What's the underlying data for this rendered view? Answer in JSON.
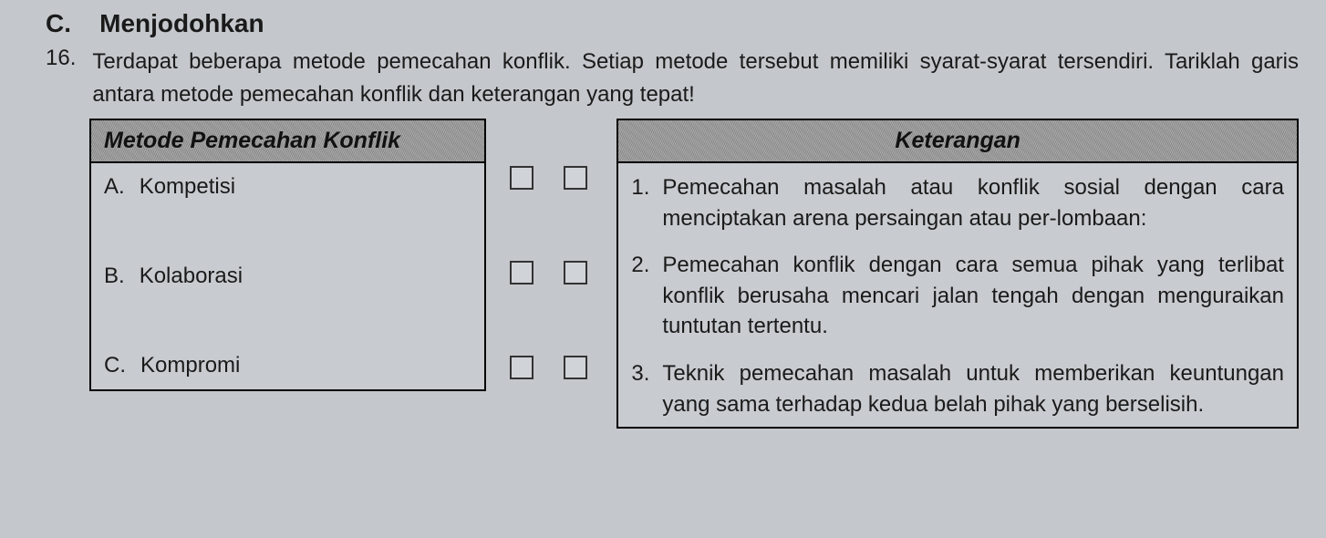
{
  "section": {
    "label": "C.",
    "title": "Menjodohkan"
  },
  "question": {
    "number": "16.",
    "text": "Terdapat beberapa metode pemecahan konflik. Setiap metode tersebut memiliki syarat-syarat tersendiri. Tariklah garis antara metode pemecahan konflik dan keterangan yang tepat!"
  },
  "left": {
    "header": "Metode Pemecahan Konflik",
    "items": [
      {
        "letter": "A.",
        "text": "Kompetisi"
      },
      {
        "letter": "B.",
        "text": "Kolaborasi"
      },
      {
        "letter": "C.",
        "text": "Kompromi"
      }
    ]
  },
  "right": {
    "header": "Keterangan",
    "items": [
      {
        "num": "1.",
        "text": "Pemecahan masalah atau konflik sosial dengan cara menciptakan arena persaingan atau per-lombaan:"
      },
      {
        "num": "2.",
        "text": "Pemecahan konflik dengan cara semua pihak yang terlibat konflik berusaha mencari jalan tengah dengan menguraikan tuntutan tertentu."
      },
      {
        "num": "3.",
        "text": "Teknik pemecahan masalah untuk memberikan keuntungan yang sama terhadap kedua belah pihak yang berselisih."
      }
    ]
  }
}
